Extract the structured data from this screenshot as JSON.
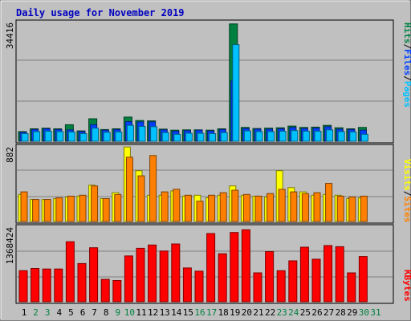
{
  "colors": {
    "title": "#0000c0",
    "hits": "#008040",
    "files": "#0040ff",
    "pages": "#00c0ff",
    "visits": "#ffff00",
    "sites": "#ff8000",
    "kbytes": "#ff0000",
    "weekday": "#000000",
    "weekend": "#008040",
    "panel": "#c0c0c0",
    "gridline": "#808080"
  },
  "chart_data": {
    "type": "bar",
    "title": "Daily usage for November 2019",
    "days": [
      "1",
      "2",
      "3",
      "4",
      "5",
      "6",
      "7",
      "8",
      "9",
      "10",
      "11",
      "12",
      "13",
      "14",
      "15",
      "16",
      "17",
      "18",
      "19",
      "20",
      "21",
      "22",
      "23",
      "24",
      "25",
      "26",
      "27",
      "28",
      "29",
      "30",
      "31"
    ],
    "weekend_days": [
      "2",
      "3",
      "9",
      "10",
      "16",
      "17",
      "23",
      "24",
      "30",
      "31"
    ],
    "panels": [
      {
        "name": "hits-files-pages",
        "ymax_label": "34416",
        "ymax": 34416,
        "legend": [
          "Pages",
          "Files",
          "Hits"
        ],
        "series": [
          {
            "name": "Hits",
            "values": [
              2800,
              3600,
              3800,
              3600,
              4800,
              3000,
              6500,
              3400,
              3600,
              7000,
              6000,
              5900,
              3500,
              3200,
              3300,
              3300,
              3200,
              3600,
              34000,
              4000,
              3700,
              3800,
              3900,
              4400,
              4000,
              4100,
              4600,
              3900,
              3600,
              4000,
              0
            ]
          },
          {
            "name": "Files",
            "values": [
              2600,
              3400,
              3600,
              3400,
              3300,
              2800,
              4800,
              3200,
              3400,
              5700,
              5600,
              5600,
              3300,
              2900,
              3100,
              3200,
              3000,
              3400,
              17500,
              3700,
              3500,
              3500,
              3600,
              4000,
              3700,
              3800,
              4200,
              3500,
              3400,
              3200,
              0
            ]
          },
          {
            "name": "Pages",
            "values": [
              2200,
              2800,
              2900,
              2800,
              2700,
              2200,
              3800,
              2600,
              2700,
              4600,
              4300,
              4200,
              2500,
              2000,
              2300,
              2300,
              2200,
              2500,
              28000,
              3000,
              2800,
              2800,
              2900,
              3100,
              2900,
              2900,
              3300,
              2800,
              2700,
              2000,
              0
            ]
          }
        ]
      },
      {
        "name": "visits-sites",
        "ymax_label": "882",
        "ymax": 882,
        "legend": [
          "Sites",
          "Visits"
        ],
        "series": [
          {
            "name": "Visits",
            "values": [
              320,
              260,
              260,
              270,
              290,
              300,
              430,
              270,
              340,
              880,
              600,
              310,
              310,
              360,
              300,
              310,
              280,
              310,
              420,
              310,
              300,
              290,
              600,
              400,
              350,
              310,
              320,
              310,
              270,
              280,
              0
            ]
          },
          {
            "name": "Sites",
            "values": [
              350,
              260,
              260,
              280,
              300,
              310,
              420,
              270,
              320,
              760,
              540,
              780,
              350,
              380,
              310,
              240,
              310,
              340,
              370,
              320,
              300,
              330,
              380,
              350,
              330,
              340,
              450,
              300,
              290,
              300,
              0
            ]
          }
        ]
      },
      {
        "name": "kbytes",
        "ymax_label": "1368424",
        "ymax": 1368424,
        "legend": [
          "KBytes"
        ],
        "series": [
          {
            "name": "KBytes",
            "values": [
              570000,
              610000,
              600000,
              600000,
              1100000,
              700000,
              990000,
              410000,
              390000,
              840000,
              980000,
              1040000,
              930000,
              1060000,
              620000,
              560000,
              1250000,
              880000,
              1270000,
              1320000,
              530000,
              920000,
              570000,
              750000,
              1000000,
              780000,
              1030000,
              1010000,
              530000,
              830000,
              0
            ]
          }
        ]
      }
    ]
  }
}
